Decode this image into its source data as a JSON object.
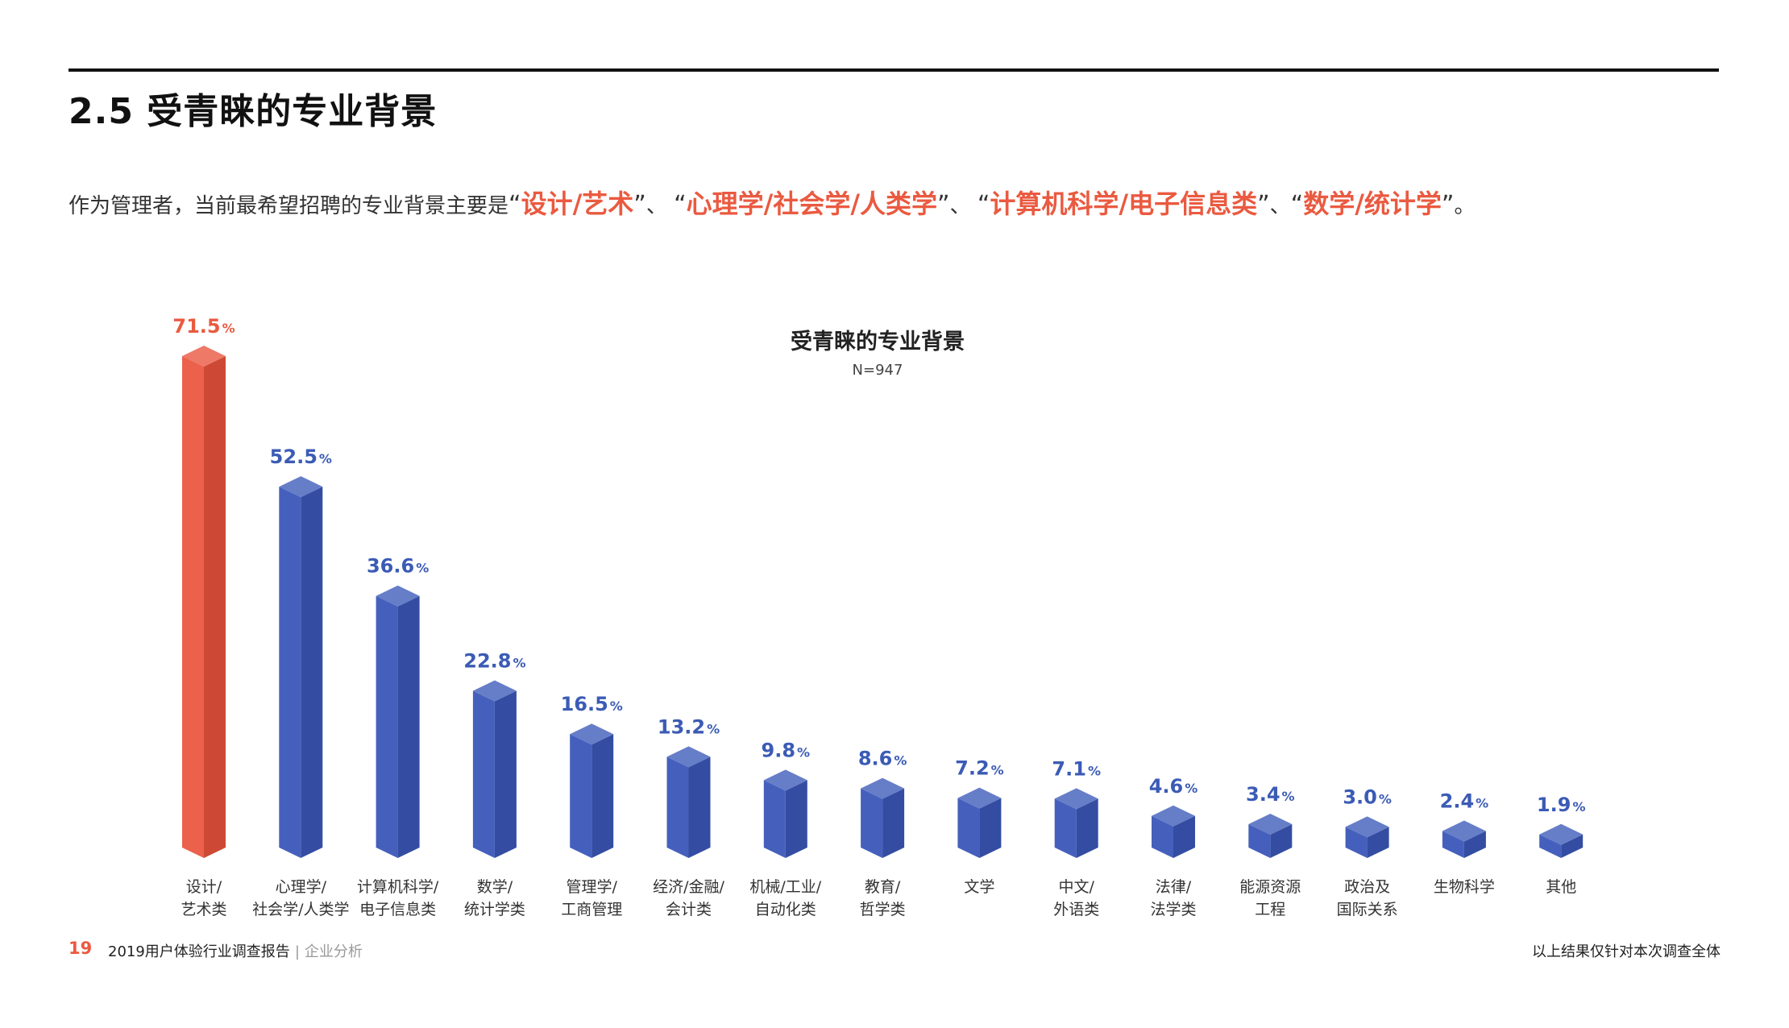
{
  "page": {
    "section_title": "2.5 受青睐的专业背景",
    "page_number": "19",
    "report_name": "2019用户体验行业调查报告",
    "report_separator": "|",
    "report_section": "企业分析",
    "footnote": "以上结果仅针对本次调查全体"
  },
  "intro": {
    "prefix": "作为管理者，当前最希望招聘的专业背景主要是",
    "open_quote": "“",
    "close_quote": "”",
    "separator": "、",
    "highlights": [
      "设计/艺术",
      "心理学/社会学/人类学",
      "计算机科学/电子信息类",
      "数学/统计学"
    ],
    "suffix": "。"
  },
  "colors": {
    "accent": "#ea5a40",
    "bar_blue": "#3b58b8",
    "bar_red": "#e9533c",
    "label_blue": "#3b5bb5"
  },
  "chart_data": {
    "type": "bar",
    "title": "受青睐的专业背景",
    "subtitle": "N=947",
    "value_suffix": "%",
    "highlight_index": 0,
    "categories": [
      [
        "设计/",
        "艺术类"
      ],
      [
        "心理学/",
        "社会学/人类学"
      ],
      [
        "计算机科学/",
        "电子信息类"
      ],
      [
        "数学/",
        "统计学类"
      ],
      [
        "管理学/",
        "工商管理"
      ],
      [
        "经济/金融/",
        "会计类"
      ],
      [
        "机械/工业/",
        "自动化类"
      ],
      [
        "教育/",
        "哲学类"
      ],
      [
        "文学"
      ],
      [
        "中文/",
        "外语类"
      ],
      [
        "法律/",
        "法学类"
      ],
      [
        "能源资源",
        "工程"
      ],
      [
        "政治及",
        "国际关系"
      ],
      [
        "生物科学"
      ],
      [
        "其他"
      ]
    ],
    "values": [
      71.5,
      52.5,
      36.6,
      22.8,
      16.5,
      13.2,
      9.8,
      8.6,
      7.2,
      7.1,
      4.6,
      3.4,
      3.0,
      2.4,
      1.9
    ],
    "value_labels": [
      "71.5",
      "52.5",
      "36.6",
      "22.8",
      "16.5",
      "13.2",
      "9.8",
      "8.6",
      "7.2",
      "7.1",
      "4.6",
      "3.4",
      "3.0",
      "2.4",
      "1.9"
    ],
    "ylim": [
      0,
      71.5
    ],
    "grid": false,
    "legend": "none"
  }
}
